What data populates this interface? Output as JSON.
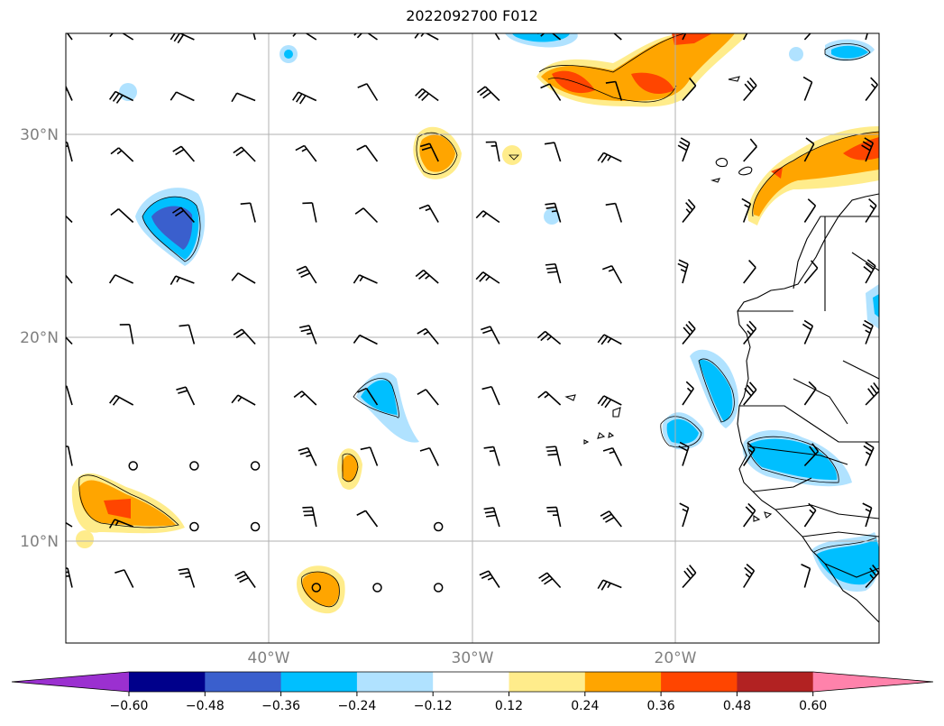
{
  "title": "2022092700 F012",
  "map": {
    "lat_labels": [
      "30°N",
      "20°N",
      "10°N"
    ],
    "lon_labels": [
      "40°W",
      "30°W",
      "20°W"
    ]
  },
  "colorbar": {
    "labels": [
      "−0.60",
      "−0.48",
      "−0.36",
      "−0.24",
      "−0.12",
      "0.12",
      "0.24",
      "0.36",
      "0.48",
      "0.60"
    ],
    "colors": [
      "#9b30d0",
      "#00008b",
      "#3a5fcd",
      "#00bfff",
      "#b0e2ff",
      "#ffffff",
      "#ffec8b",
      "#ffa500",
      "#ff4500",
      "#b22222",
      "#ff82ab"
    ]
  }
}
